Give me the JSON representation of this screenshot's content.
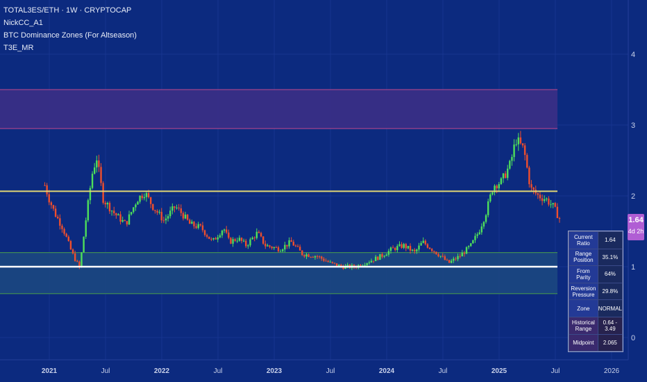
{
  "legend": {
    "symbol": "TOTAL3ES/ETH · 1W · CRYPTOCAP",
    "indicator_1": "NickCC_A1",
    "indicator_2": "BTC Dominance Zones (For Altseason)",
    "indicator_3": "T3E_MR"
  },
  "price_tag": {
    "price": "1.64",
    "countdown": "4d 2h"
  },
  "stats_table": [
    {
      "label": "Current Ratio",
      "value": "1.64"
    },
    {
      "label": "Range Position",
      "value": "35.1%"
    },
    {
      "label": "From Parity",
      "value": "64%"
    },
    {
      "label": "Reversion Pressure",
      "value": "29.8%"
    },
    {
      "label": "Zone",
      "value": "NORMAL"
    },
    {
      "label": "Historical Range",
      "value": "0.64 - 3.49"
    },
    {
      "label": "Midpoint",
      "value": "2.065"
    }
  ],
  "colors": {
    "background": "#0c2a7f",
    "up_candle": "#4ee05a",
    "down_candle": "#f04e2c",
    "upper_zone_fill": "#3b2f86",
    "upper_zone_border": "#a0438b",
    "lower_zone_fill": "#1b4781",
    "lower_zone_border": "#3f8a55",
    "midpoint_line": "#e3d774",
    "parity_line": "#ffffff",
    "price_tag": "#b05ed4"
  },
  "chart_data": {
    "type": "candlestick",
    "title": "TOTAL3ES/ETH · 1W · CRYPTOCAP",
    "xlabel": "",
    "ylabel": "",
    "ylim": [
      -0.25,
      4.75
    ],
    "y_ticks": [
      "0",
      "1",
      "2",
      "3",
      "4"
    ],
    "x_ticks": [
      "2021",
      "Jul",
      "2022",
      "Jul",
      "2023",
      "Jul",
      "2024",
      "Jul",
      "2025",
      "Jul",
      "2026"
    ],
    "horizontal_lines": [
      {
        "value": 2.065
      },
      {
        "value": 1.0
      }
    ],
    "zones": [
      {
        "from": 2.95,
        "to": 3.5
      },
      {
        "from": 0.62,
        "to": 1.2
      }
    ],
    "close_path": [
      [
        2020.96,
        2.15
      ],
      [
        2021.0,
        1.95
      ],
      [
        2021.05,
        1.75
      ],
      [
        2021.12,
        1.55
      ],
      [
        2021.2,
        1.2
      ],
      [
        2021.27,
        0.98
      ],
      [
        2021.32,
        1.6
      ],
      [
        2021.38,
        2.3
      ],
      [
        2021.42,
        2.55
      ],
      [
        2021.48,
        1.95
      ],
      [
        2021.58,
        1.75
      ],
      [
        2021.68,
        1.6
      ],
      [
        2021.78,
        1.95
      ],
      [
        2021.85,
        2.05
      ],
      [
        2021.92,
        1.85
      ],
      [
        2022.02,
        1.65
      ],
      [
        2022.12,
        1.85
      ],
      [
        2022.18,
        1.75
      ],
      [
        2022.25,
        1.6
      ],
      [
        2022.35,
        1.55
      ],
      [
        2022.45,
        1.35
      ],
      [
        2022.55,
        1.55
      ],
      [
        2022.6,
        1.35
      ],
      [
        2022.68,
        1.4
      ],
      [
        2022.75,
        1.3
      ],
      [
        2022.85,
        1.48
      ],
      [
        2022.92,
        1.3
      ],
      [
        2023.05,
        1.25
      ],
      [
        2023.15,
        1.35
      ],
      [
        2023.25,
        1.18
      ],
      [
        2023.38,
        1.15
      ],
      [
        2023.5,
        1.05
      ],
      [
        2023.6,
        1.0
      ],
      [
        2023.72,
        1.0
      ],
      [
        2023.85,
        1.08
      ],
      [
        2023.95,
        1.15
      ],
      [
        2024.05,
        1.25
      ],
      [
        2024.15,
        1.3
      ],
      [
        2024.25,
        1.2
      ],
      [
        2024.32,
        1.35
      ],
      [
        2024.4,
        1.25
      ],
      [
        2024.48,
        1.15
      ],
      [
        2024.55,
        1.05
      ],
      [
        2024.65,
        1.15
      ],
      [
        2024.75,
        1.3
      ],
      [
        2024.82,
        1.5
      ],
      [
        2024.88,
        1.75
      ],
      [
        2024.95,
        2.15
      ],
      [
        2025.02,
        2.2
      ],
      [
        2025.1,
        2.45
      ],
      [
        2025.15,
        2.8
      ],
      [
        2025.22,
        2.65
      ],
      [
        2025.28,
        2.1
      ],
      [
        2025.35,
        2.0
      ],
      [
        2025.42,
        1.95
      ],
      [
        2025.48,
        1.85
      ],
      [
        2025.55,
        1.64
      ]
    ]
  }
}
